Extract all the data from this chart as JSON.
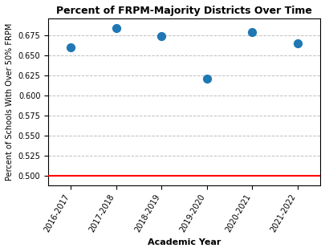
{
  "title": "Percent of FRPM-Majority Districts Over Time",
  "xlabel": "Academic Year",
  "ylabel": "Percent of Schools With Over 50% FRPM",
  "x_labels": [
    "2016-2017",
    "2017-2018",
    "2018-2019",
    "2019-2020",
    "2020-2021",
    "2021-2022"
  ],
  "y_values": [
    0.66,
    0.684,
    0.674,
    0.621,
    0.679,
    0.665
  ],
  "dot_color": "#1f77b4",
  "hline_y": 0.5,
  "hline_color": "red",
  "ylim": [
    0.488,
    0.697
  ],
  "yticks": [
    0.5,
    0.525,
    0.55,
    0.575,
    0.6,
    0.625,
    0.65,
    0.675
  ],
  "grid_style": "dashed",
  "dot_size": 50,
  "title_fontsize": 9,
  "label_fontsize": 8,
  "tick_fontsize": 7,
  "ylabel_fontsize": 7
}
